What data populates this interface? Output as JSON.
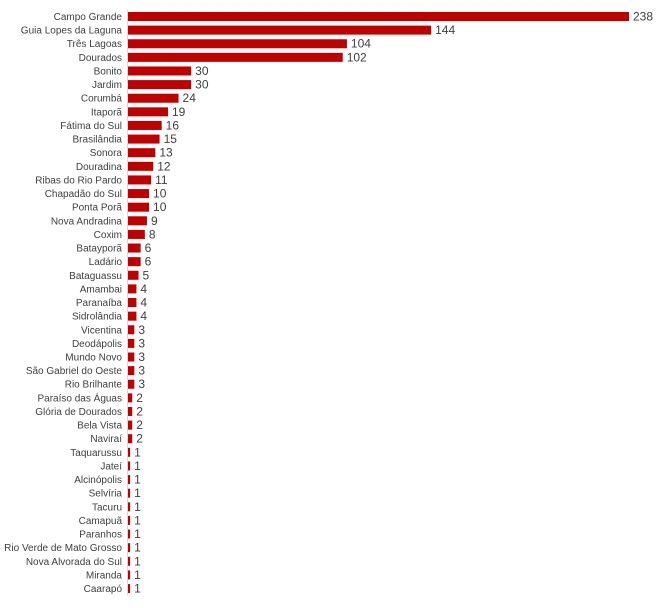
{
  "chart_data": {
    "type": "bar",
    "orientation": "horizontal",
    "bar_color": "#c00000",
    "categories": [
      "Campo Grande",
      "Guia Lopes da Laguna",
      "Três Lagoas",
      "Dourados",
      "Bonito",
      "Jardim",
      "Corumbá",
      "Itaporã",
      "Fátima do Sul",
      "Brasilândia",
      "Sonora",
      "Douradina",
      "Ribas do Rio Pardo",
      "Chapadão do Sul",
      "Ponta Porã",
      "Nova Andradina",
      "Coxim",
      "Batayporã",
      "Ladário",
      "Bataguassu",
      "Amambai",
      "Paranaíba",
      "Sidrolândia",
      "Vicentina",
      "Deodápolis",
      "Mundo Novo",
      "São Gabriel do Oeste",
      "Rio Brilhante",
      "Paraíso das Águas",
      "Glória de Dourados",
      "Bela Vista",
      "Naviraí",
      "Taquarussu",
      "Jateí",
      "Alcinópolis",
      "Selvíria",
      "Tacuru",
      "Camapuã",
      "Paranhos",
      "Rio Verde de Mato Grosso",
      "Nova Alvorada do Sul",
      "Miranda",
      "Caarapó"
    ],
    "values": [
      238,
      144,
      104,
      102,
      30,
      30,
      24,
      19,
      16,
      15,
      13,
      12,
      11,
      10,
      10,
      9,
      8,
      6,
      6,
      5,
      4,
      4,
      4,
      3,
      3,
      3,
      3,
      3,
      2,
      2,
      2,
      2,
      1,
      1,
      1,
      1,
      1,
      1,
      1,
      1,
      1,
      1,
      1
    ],
    "title": "",
    "xlabel": "",
    "ylabel": "",
    "xlim": [
      0,
      238
    ],
    "grid": false,
    "legend": "none",
    "data_labels": true
  }
}
